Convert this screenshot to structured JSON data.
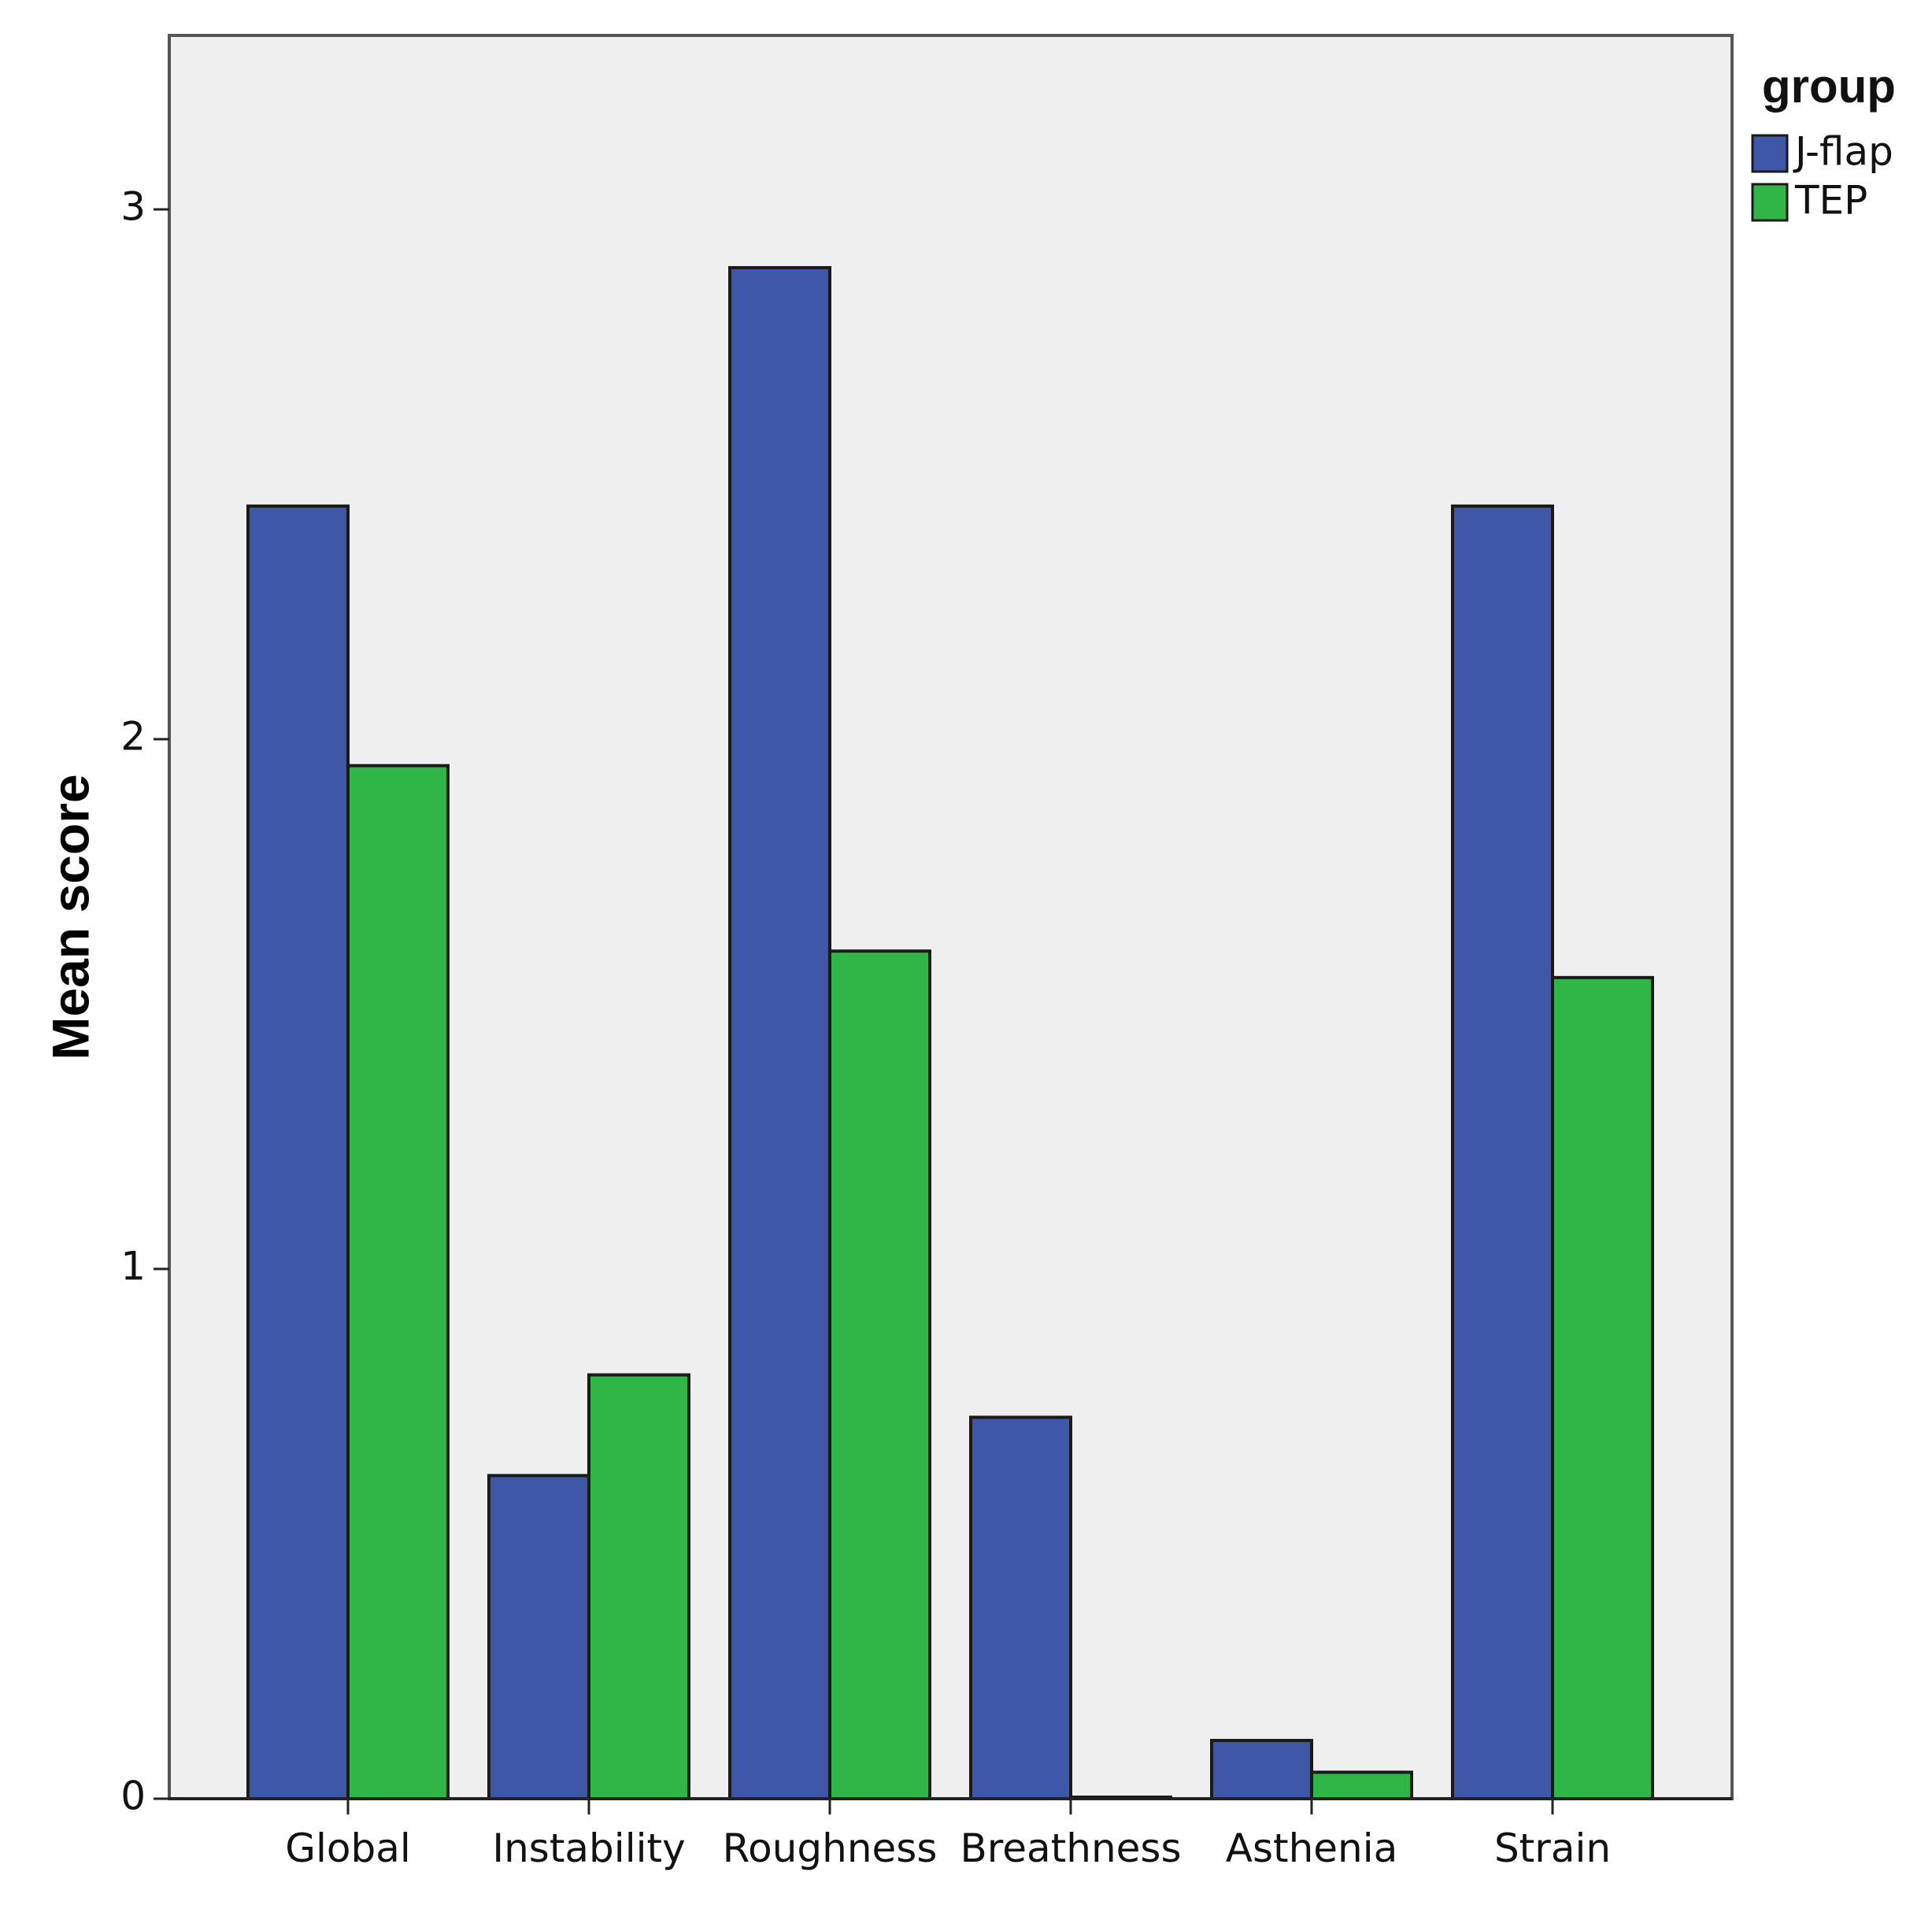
{
  "chart_data": {
    "type": "bar",
    "categories": [
      "Global",
      "Instability",
      "Roughness",
      "Breathness",
      "Asthenia",
      "Strain"
    ],
    "series": [
      {
        "name": "J-flap",
        "values": [
          2.44,
          0.61,
          2.89,
          0.72,
          0.11,
          2.44
        ],
        "color": "#3f57a8"
      },
      {
        "name": "TEP",
        "values": [
          1.95,
          0.8,
          1.6,
          0.0,
          0.05,
          1.55
        ],
        "color": "#30b647"
      }
    ],
    "xlabel": "",
    "ylabel": "Mean score",
    "yticks": [
      "0",
      "1",
      "2",
      "3"
    ],
    "ylim": [
      0,
      3.33
    ],
    "legend_title": "group",
    "legend_position": "top-right",
    "grid": false,
    "plot_background": "#efefef"
  }
}
